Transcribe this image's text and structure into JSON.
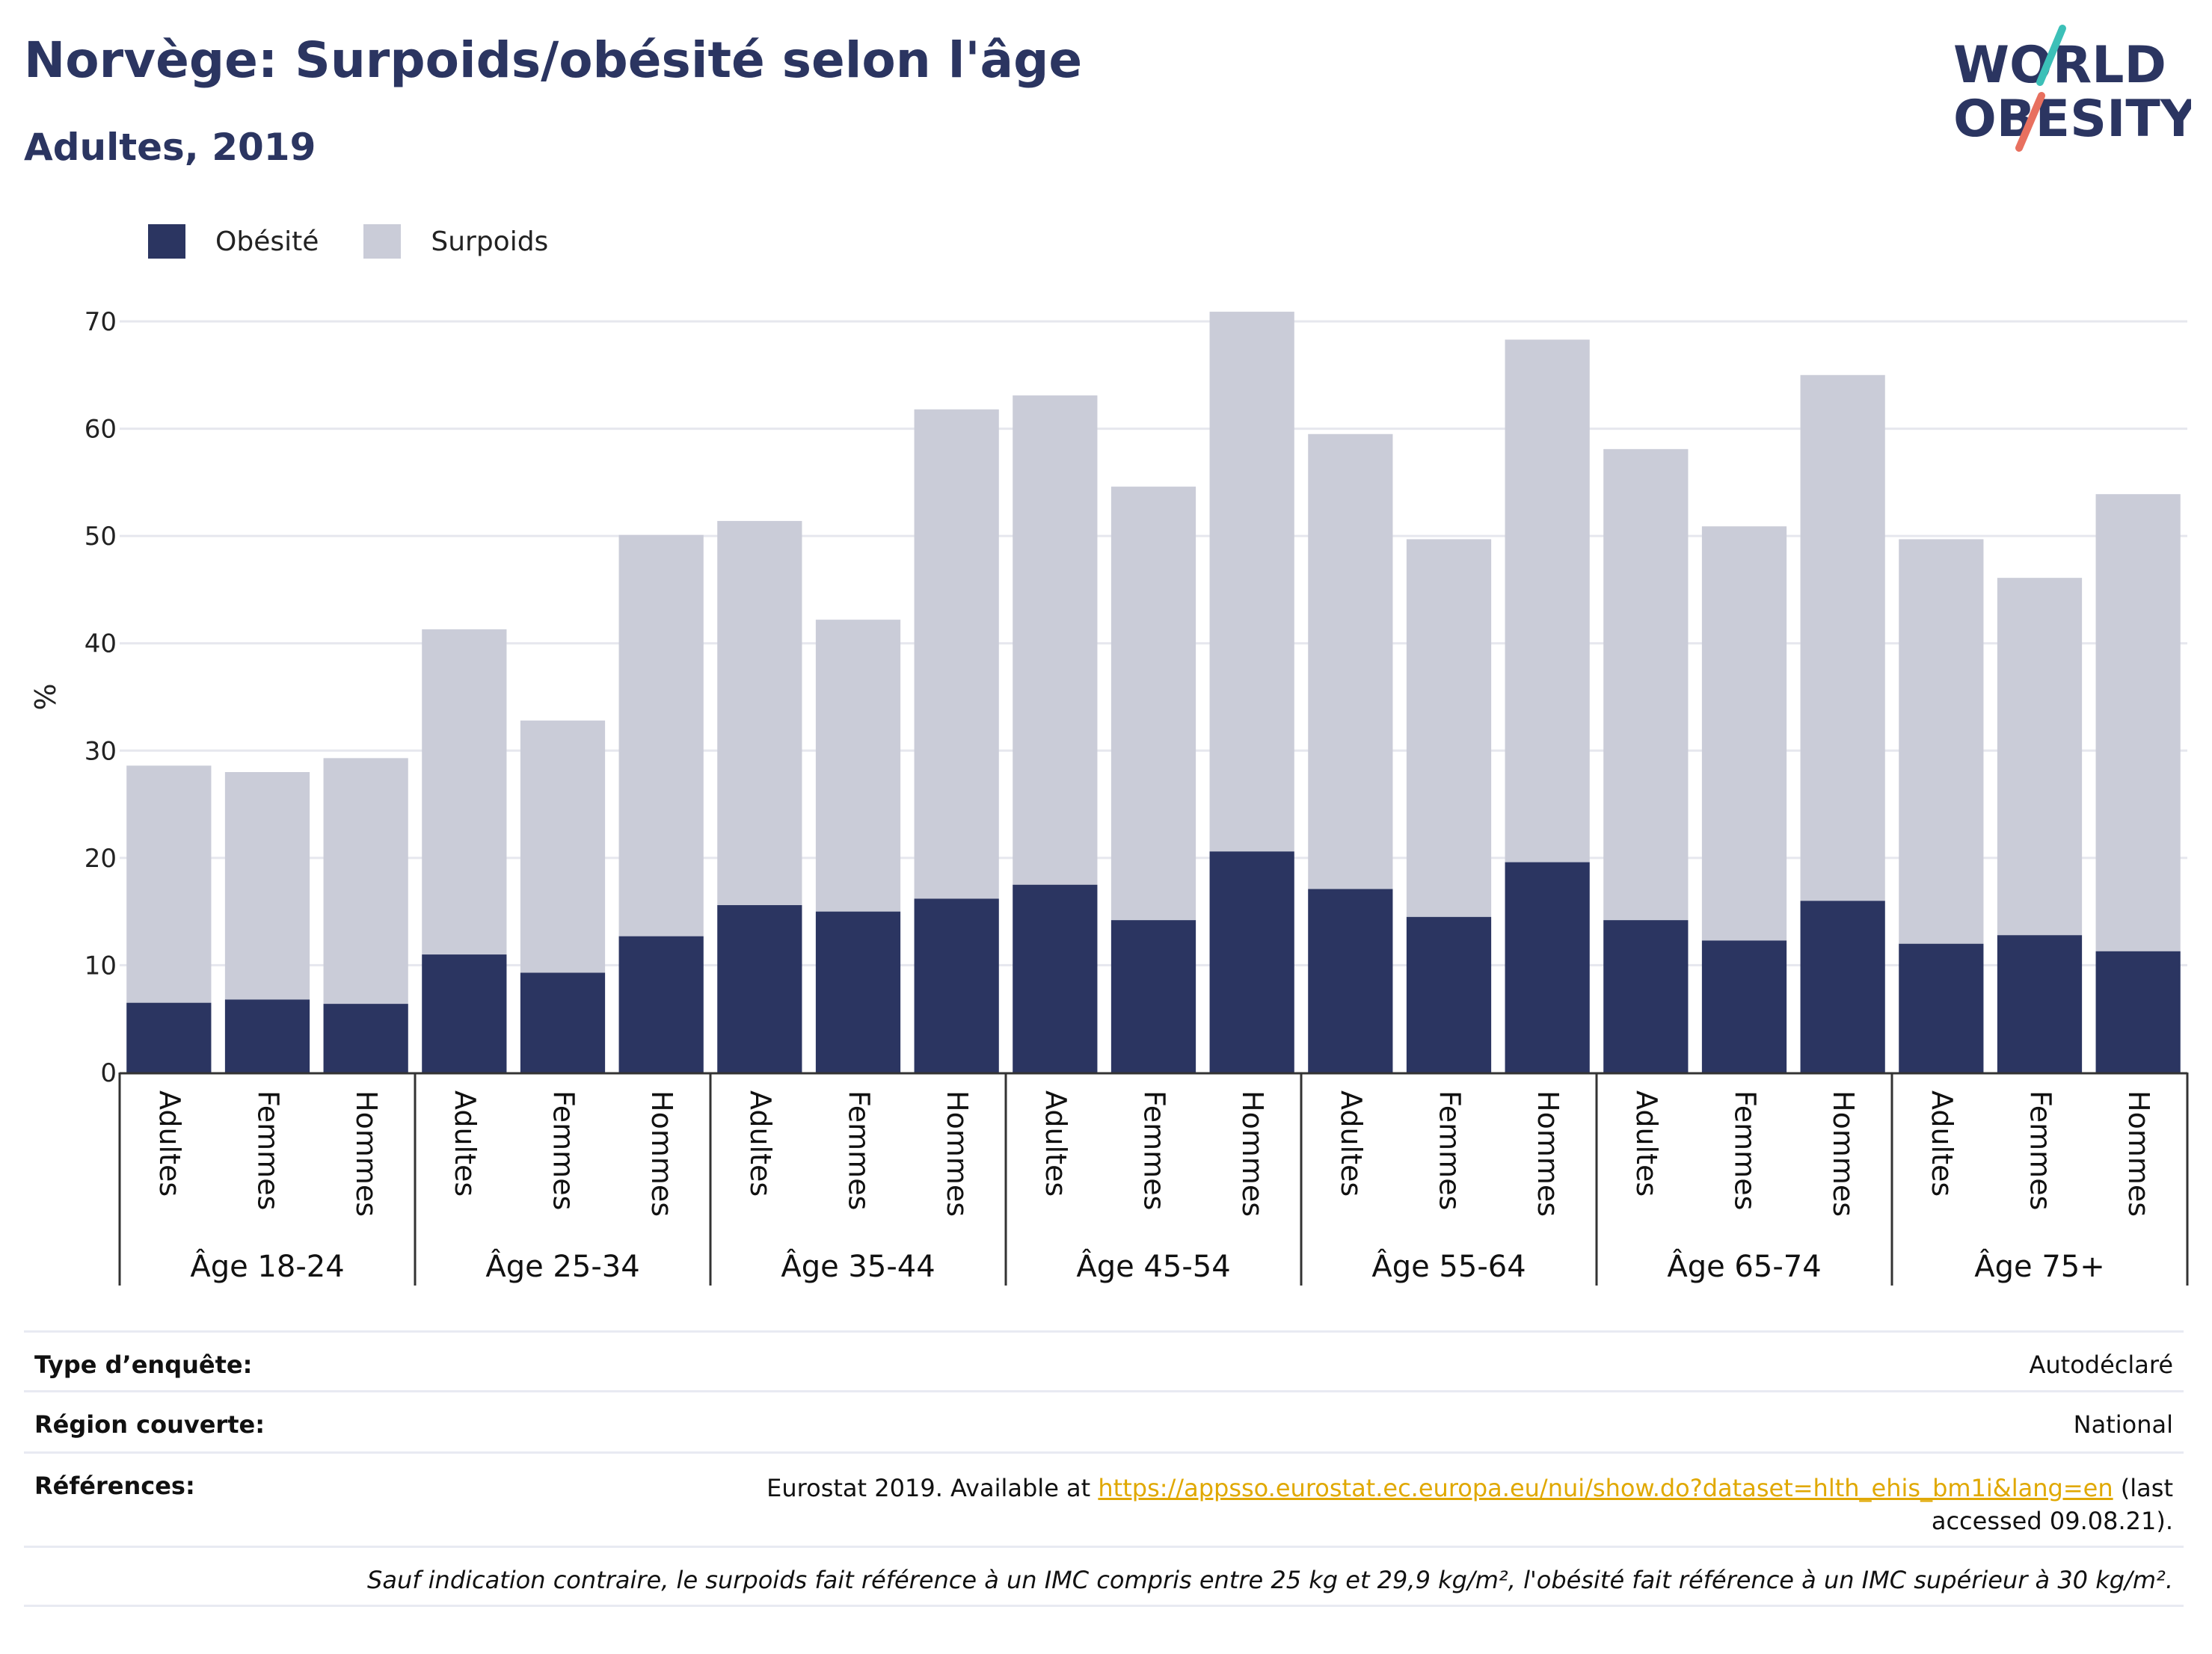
{
  "header": {
    "title": "Norvège: Surpoids/obésité selon l'âge",
    "subtitle": "Adultes, 2019"
  },
  "logo": {
    "line1": "WORLD",
    "line2": "OBESITY",
    "colors": [
      "#2b3561",
      "#3cc0b8",
      "#e8705f"
    ]
  },
  "legend": {
    "obesite": {
      "label": "Obésité",
      "color": "#2b3561"
    },
    "surpoids": {
      "label": "Surpoids",
      "color": "#caccd8"
    }
  },
  "chart_data": {
    "type": "bar",
    "stacked": true,
    "ylabel": "%",
    "ylim": [
      0,
      70
    ],
    "yticks": [
      0,
      10,
      20,
      30,
      40,
      50,
      60,
      70
    ],
    "grid": true,
    "legend_position": "top-left",
    "groups": [
      "Âge 18-24",
      "Âge 25-34",
      "Âge 35-44",
      "Âge 45-54",
      "Âge 55-64",
      "Âge 65-74",
      "Âge 75+"
    ],
    "subcategories": [
      "Adultes",
      "Femmes",
      "Hommes"
    ],
    "series": [
      {
        "name": "Obésité",
        "color": "#2b3561",
        "values": [
          6.5,
          6.8,
          6.4,
          11.0,
          9.3,
          12.7,
          15.6,
          15.0,
          16.2,
          17.5,
          14.2,
          20.6,
          17.1,
          14.5,
          19.6,
          14.2,
          12.3,
          16.0,
          12.0,
          12.8,
          11.3
        ]
      },
      {
        "name": "Surpoids",
        "color": "#caccd8",
        "values": [
          22.1,
          21.2,
          22.9,
          30.3,
          23.5,
          37.4,
          35.8,
          27.2,
          45.6,
          45.6,
          40.4,
          50.3,
          42.4,
          35.2,
          48.7,
          43.9,
          38.6,
          49.0,
          37.7,
          33.3,
          42.6
        ]
      }
    ]
  },
  "info": {
    "survey_label": "Type d’enquête:",
    "survey_value": "Autodéclaré",
    "region_label": "Région couverte:",
    "region_value": "National",
    "refs_label": "Références:",
    "refs_prefix": "Eurostat 2019. Available at",
    "refs_link": "https://appsso.eurostat.ec.europa.eu/nui/show.do?dataset=hlth_ehis_bm1i&lang=en",
    "refs_suffix": "(last accessed 09.08.21).",
    "note": "Sauf indication contraire, le surpoids fait référence à un IMC compris entre 25 kg et 29,9 kg/m², l'obésité fait référence à un IMC supérieur à 30 kg/m²."
  }
}
